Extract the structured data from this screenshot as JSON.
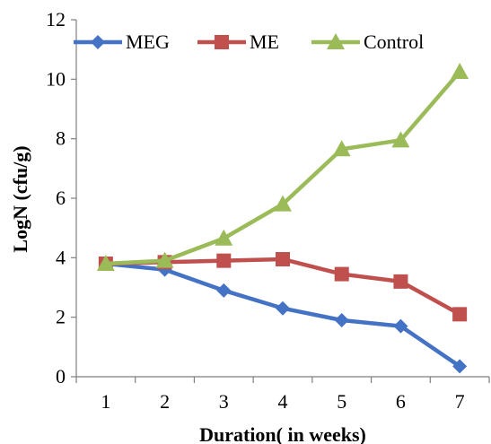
{
  "chart_data": {
    "type": "line",
    "xlabel": "Duration( in weeks)",
    "ylabel": "LogN (cfu/g)",
    "categories": [
      "1",
      "2",
      "3",
      "4",
      "5",
      "6",
      "7"
    ],
    "ylim": [
      0,
      12
    ],
    "yticks": [
      0,
      2,
      4,
      6,
      8,
      10,
      12
    ],
    "grid": false,
    "legend_position": "top",
    "series": [
      {
        "name": "MEG",
        "marker": "diamond",
        "color": "#4472C4",
        "values": [
          3.8,
          3.6,
          2.9,
          2.3,
          1.9,
          1.7,
          0.35
        ]
      },
      {
        "name": "ME",
        "marker": "square",
        "color": "#C0504D",
        "values": [
          3.8,
          3.85,
          3.9,
          3.95,
          3.45,
          3.2,
          2.1
        ]
      },
      {
        "name": "Control",
        "marker": "triangle",
        "color": "#9BBB59",
        "values": [
          3.8,
          3.9,
          4.65,
          5.8,
          7.65,
          7.95,
          10.25
        ]
      }
    ]
  }
}
